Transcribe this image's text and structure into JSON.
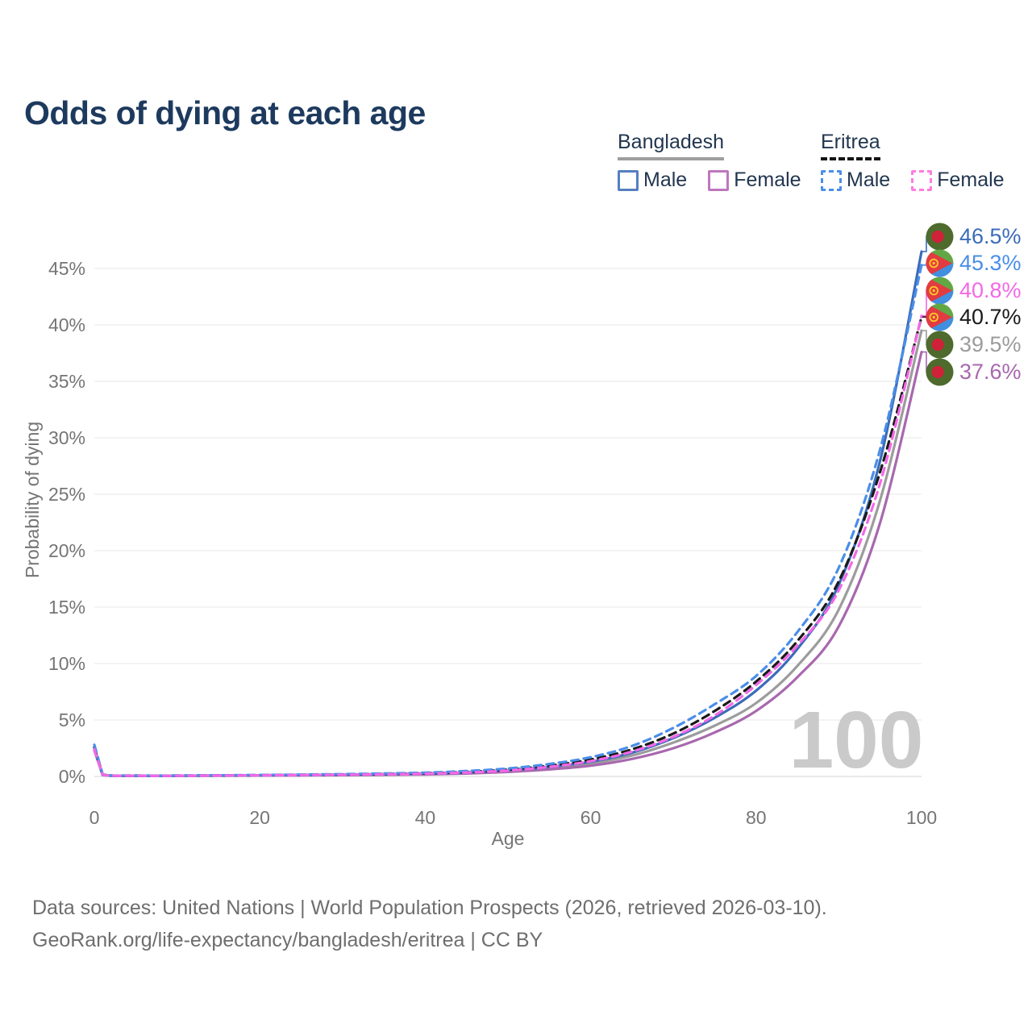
{
  "title": "Odds of dying at each age",
  "watermark": "100",
  "footer": {
    "line1": "Data sources: United Nations | World Population Prospects (2026, retrieved 2026-03-10).",
    "line2": "GeoRank.org/life-expectancy/bangladesh/eritrea | CC BY"
  },
  "legend": {
    "groups": [
      {
        "label": "Bangladesh",
        "underline_style": "solid",
        "underline_color": "#9e9e9e",
        "items": [
          {
            "label": "Male",
            "box_color": "#557fc0",
            "box_style": "solid"
          },
          {
            "label": "Female",
            "box_color": "#bd77bd",
            "box_style": "solid"
          }
        ]
      },
      {
        "label": "Eritrea",
        "underline_style": "dashed",
        "underline_color": "#141414",
        "items": [
          {
            "label": "Male",
            "box_color": "#4a8ee8",
            "box_style": "dashed"
          },
          {
            "label": "Female",
            "box_color": "#ff7ce0",
            "box_style": "dashed"
          }
        ]
      }
    ]
  },
  "chart_data": {
    "type": "line",
    "title": "Odds of dying at each age",
    "xlabel": "Age",
    "ylabel": "Probability of dying",
    "x_ticks": [
      0,
      20,
      40,
      60,
      80,
      100
    ],
    "y_ticks_percent": [
      0,
      5,
      10,
      15,
      20,
      25,
      30,
      35,
      40,
      45
    ],
    "xlim": [
      0,
      100
    ],
    "ylim_percent": [
      0,
      47
    ],
    "grid": "horizontal-only",
    "legend_position": "top-right",
    "hover_age_watermark": "100",
    "ages": [
      0,
      1,
      5,
      10,
      15,
      20,
      25,
      30,
      35,
      40,
      45,
      50,
      55,
      60,
      65,
      70,
      75,
      80,
      85,
      90,
      95,
      100
    ],
    "series": [
      {
        "id": "bangladesh-male",
        "country": "Bangladesh",
        "sex": "Male",
        "style": "solid",
        "color": "#3a6cb8",
        "flag": "bangladesh",
        "end_label": "46.5%",
        "values_percent": [
          2.5,
          0.15,
          0.05,
          0.06,
          0.08,
          0.1,
          0.12,
          0.15,
          0.19,
          0.25,
          0.35,
          0.55,
          0.85,
          1.3,
          2.1,
          3.4,
          5.2,
          7.6,
          11.3,
          17.0,
          28.0,
          46.5
        ]
      },
      {
        "id": "eritrea-male",
        "country": "Eritrea",
        "sex": "Male",
        "style": "dashed",
        "color": "#4a8ee8",
        "flag": "eritrea",
        "end_label": "45.3%",
        "values_percent": [
          2.8,
          0.2,
          0.08,
          0.08,
          0.1,
          0.13,
          0.16,
          0.2,
          0.26,
          0.33,
          0.48,
          0.7,
          1.1,
          1.7,
          2.7,
          4.3,
          6.4,
          8.9,
          12.8,
          18.5,
          29.0,
          45.3
        ]
      },
      {
        "id": "eritrea-female",
        "country": "Eritrea",
        "sex": "Female",
        "style": "dashed",
        "color": "#f468e6",
        "flag": "eritrea",
        "end_label": "40.8%",
        "values_percent": [
          2.4,
          0.16,
          0.06,
          0.06,
          0.08,
          0.1,
          0.12,
          0.15,
          0.19,
          0.24,
          0.35,
          0.52,
          0.85,
          1.35,
          2.2,
          3.5,
          5.4,
          8.1,
          11.6,
          16.5,
          26.0,
          40.8
        ]
      },
      {
        "id": "eritrea-both",
        "country": "Eritrea",
        "sex": "Both",
        "style": "dashed",
        "color": "#1a1a1a",
        "flag": "eritrea",
        "end_label": "40.7%",
        "values_percent": [
          2.6,
          0.18,
          0.07,
          0.07,
          0.09,
          0.11,
          0.14,
          0.17,
          0.22,
          0.28,
          0.4,
          0.6,
          0.95,
          1.5,
          2.4,
          3.8,
          5.8,
          8.4,
          12.0,
          17.3,
          27.0,
          40.7
        ]
      },
      {
        "id": "bangladesh-both",
        "country": "Bangladesh",
        "sex": "Both",
        "style": "solid",
        "color": "#9c9c9c",
        "flag": "bangladesh",
        "end_label": "39.5%",
        "values_percent": [
          2.4,
          0.14,
          0.05,
          0.05,
          0.07,
          0.09,
          0.11,
          0.13,
          0.17,
          0.22,
          0.32,
          0.48,
          0.75,
          1.15,
          1.85,
          3.0,
          4.5,
          6.5,
          9.8,
          14.8,
          24.5,
          39.5
        ]
      },
      {
        "id": "bangladesh-female",
        "country": "Bangladesh",
        "sex": "Female",
        "style": "solid",
        "color": "#a868ae",
        "flag": "bangladesh",
        "end_label": "37.6%",
        "values_percent": [
          2.3,
          0.13,
          0.05,
          0.05,
          0.06,
          0.08,
          0.09,
          0.11,
          0.14,
          0.18,
          0.26,
          0.4,
          0.62,
          0.95,
          1.55,
          2.5,
          3.9,
          5.8,
          8.8,
          13.3,
          22.5,
          37.6
        ]
      }
    ]
  }
}
